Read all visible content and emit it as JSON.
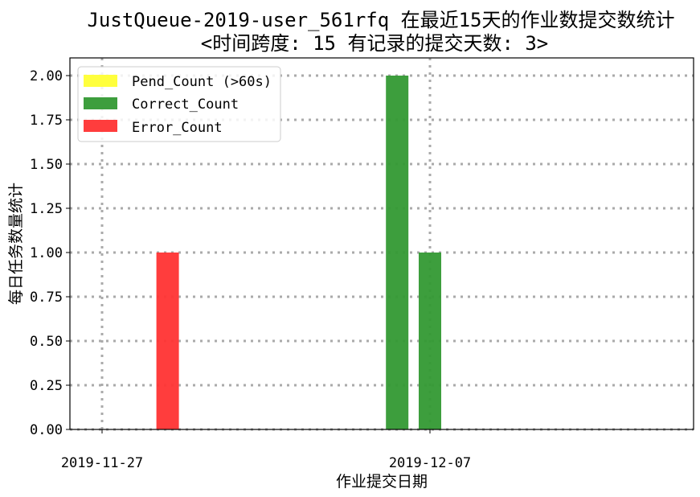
{
  "chart_data": {
    "type": "bar",
    "title": "JustQueue-2019-user_561rfq 在最近15天的作业数提交数统计",
    "subtitle": "<时间跨度: 15  有记录的提交天数: 3>",
    "xlabel": "作业提交日期",
    "ylabel": "每日任务数量统计",
    "x_tick_labels": [
      "2019-11-27",
      "2019-12-07"
    ],
    "y_tick_labels": [
      "0.00",
      "0.25",
      "0.50",
      "0.75",
      "1.00",
      "1.25",
      "1.50",
      "1.75",
      "2.00"
    ],
    "ylim": [
      0,
      2.1
    ],
    "grid": true,
    "legend_position": "top-left",
    "series": [
      {
        "name": "Pend_Count (>60s)",
        "color": "#ffff33",
        "points": []
      },
      {
        "name": "Correct_Count",
        "color": "#339933",
        "points": [
          {
            "x": "2019-12-06",
            "y": 2
          },
          {
            "x": "2019-12-07",
            "y": 1
          }
        ]
      },
      {
        "name": "Error_Count",
        "color": "#ff3333",
        "points": [
          {
            "x": "2019-11-29",
            "y": 1
          }
        ]
      }
    ]
  }
}
